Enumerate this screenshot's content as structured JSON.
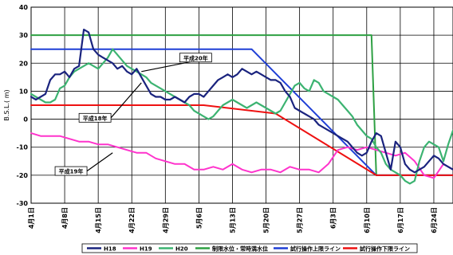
{
  "chart_data": {
    "type": "line",
    "ylabel": "B.S.L.( m)",
    "ylim": [
      -30,
      40
    ],
    "yticks": [
      40,
      30,
      20,
      10,
      0,
      -10,
      -20,
      -30
    ],
    "grid": true,
    "x_categories": [
      "4月1日",
      "4月8日",
      "4月15日",
      "4月22日",
      "4月29日",
      "5月6日",
      "5月13日",
      "5月20日",
      "5月27日",
      "6月3日",
      "6月10日",
      "6月17日",
      "6月24日"
    ],
    "x_range_days": [
      0,
      88
    ],
    "legend_position": "bottom",
    "annotations": [
      {
        "text": "平成20年",
        "label_day": 31,
        "label_y": 22,
        "point_day": 23,
        "point_y": 17
      },
      {
        "text": "平成18年",
        "label_day": 10,
        "label_y": 0.5,
        "point_day": 23,
        "point_y": 13
      },
      {
        "text": "平成19年",
        "label_day": 5,
        "label_y": -18.5,
        "point_day": 17,
        "point_y": -12
      }
    ],
    "series": [
      {
        "name": "H18",
        "color": "#1a237e",
        "width": 2.2,
        "x": [
          0,
          1,
          2,
          3,
          4,
          5,
          6,
          7,
          8,
          9,
          10,
          11,
          12,
          13,
          14,
          15,
          16,
          17,
          18,
          19,
          20,
          21,
          22,
          23,
          24,
          25,
          26,
          27,
          28,
          29,
          30,
          31,
          32,
          33,
          34,
          35,
          36,
          37,
          38,
          39,
          40,
          41,
          42,
          43,
          44,
          45,
          46,
          47,
          48,
          49,
          50,
          51,
          52,
          53,
          54,
          55,
          56,
          57,
          58,
          59,
          60,
          61,
          62,
          63,
          64,
          65,
          66,
          67,
          68,
          69,
          70,
          71,
          72,
          73,
          74,
          75,
          76,
          77,
          78,
          79,
          80,
          81,
          82,
          83,
          84,
          85,
          86,
          87,
          88
        ],
        "y": [
          8,
          7,
          8,
          9,
          14,
          16,
          16,
          17,
          15,
          18,
          19,
          32,
          31,
          25,
          23,
          22,
          21,
          20,
          18,
          19,
          17,
          16,
          18,
          15,
          12,
          9,
          8,
          8,
          7,
          7,
          8,
          7,
          6,
          8,
          9,
          9,
          8,
          10,
          12,
          14,
          15,
          16,
          15,
          16,
          18,
          17,
          16,
          17,
          16,
          15,
          14,
          14,
          13,
          10,
          8,
          4,
          3,
          2,
          1,
          0,
          -2,
          -3,
          -4,
          -5,
          -6,
          -7,
          -8,
          -10,
          -12,
          -13,
          -12,
          -8,
          -5,
          -6,
          -12,
          -18,
          -8,
          -10,
          -16,
          -18,
          -19,
          -18,
          -17,
          -15,
          -13,
          -14,
          -16,
          -17,
          -18
        ]
      },
      {
        "name": "H19",
        "color": "#ff33cc",
        "width": 2,
        "x": [
          0,
          2,
          4,
          6,
          8,
          10,
          12,
          14,
          16,
          18,
          20,
          22,
          24,
          26,
          28,
          30,
          32,
          34,
          36,
          38,
          40,
          42,
          44,
          46,
          48,
          50,
          52,
          54,
          56,
          58,
          60,
          62,
          64,
          66,
          68,
          70,
          72,
          74,
          76,
          78,
          80,
          82,
          84,
          86,
          88
        ],
        "y": [
          -5,
          -6,
          -6,
          -6,
          -7,
          -8,
          -8,
          -9,
          -9,
          -10,
          -11,
          -12,
          -12,
          -14,
          -15,
          -16,
          -16,
          -18,
          -18,
          -17,
          -18,
          -16,
          -18,
          -19,
          -18,
          -18,
          -19,
          -17,
          -18,
          -18,
          -19,
          -16,
          -11,
          -10,
          -11,
          -10,
          -11,
          -12,
          -13,
          -12,
          -15,
          -20,
          -21,
          -16,
          -18
        ]
      },
      {
        "name": "H20",
        "color": "#3cb371",
        "width": 2.2,
        "x": [
          0,
          1,
          2,
          3,
          4,
          5,
          6,
          7,
          8,
          9,
          10,
          11,
          12,
          13,
          14,
          15,
          16,
          17,
          18,
          19,
          20,
          21,
          22,
          23,
          24,
          25,
          26,
          27,
          28,
          29,
          30,
          31,
          32,
          33,
          34,
          35,
          36,
          37,
          38,
          39,
          40,
          41,
          42,
          43,
          44,
          45,
          46,
          47,
          48,
          49,
          50,
          51,
          52,
          53,
          54,
          55,
          56,
          57,
          58,
          59,
          60,
          61,
          62,
          63,
          64,
          65,
          66,
          67,
          68,
          69,
          70,
          71,
          72,
          73,
          74,
          75,
          76,
          77,
          78,
          79,
          80,
          81,
          82,
          83,
          84,
          85,
          86,
          87,
          88
        ],
        "y": [
          9,
          8,
          7,
          6,
          6,
          7,
          11,
          12,
          15,
          17,
          18,
          19,
          20,
          19,
          18,
          20,
          22,
          25,
          23,
          21,
          19,
          18,
          17,
          16,
          15,
          13,
          12,
          11,
          10,
          9,
          8,
          7,
          6,
          5,
          3,
          2,
          1,
          0,
          1,
          3,
          5,
          6,
          7,
          6,
          5,
          4,
          5,
          6,
          5,
          4,
          3,
          2,
          3,
          6,
          9,
          12,
          13,
          11,
          10,
          14,
          13,
          10,
          9,
          8,
          7,
          5,
          3,
          1,
          -2,
          -4,
          -6,
          -7,
          -10,
          -12,
          -16,
          -18,
          -19,
          -20,
          -22,
          -23,
          -22,
          -15,
          -10,
          -8,
          -9,
          -10,
          -15,
          -9,
          -4
        ]
      },
      {
        "name": "制限水位・常時満水位",
        "color": "#2ea043",
        "width": 2,
        "x": [
          0,
          71,
          72,
          88
        ],
        "y": [
          30,
          30,
          -20,
          -20
        ]
      },
      {
        "name": "試行操作上限ライン",
        "color": "#1f3fd6",
        "width": 2,
        "x": [
          0,
          46,
          72,
          88
        ],
        "y": [
          25,
          25,
          -20,
          -20
        ]
      },
      {
        "name": "試行操作下限ライン",
        "color": "#ee1111",
        "width": 2,
        "x": [
          0,
          36,
          51,
          72,
          88
        ],
        "y": [
          5,
          5,
          2,
          -20,
          -20
        ]
      }
    ]
  }
}
